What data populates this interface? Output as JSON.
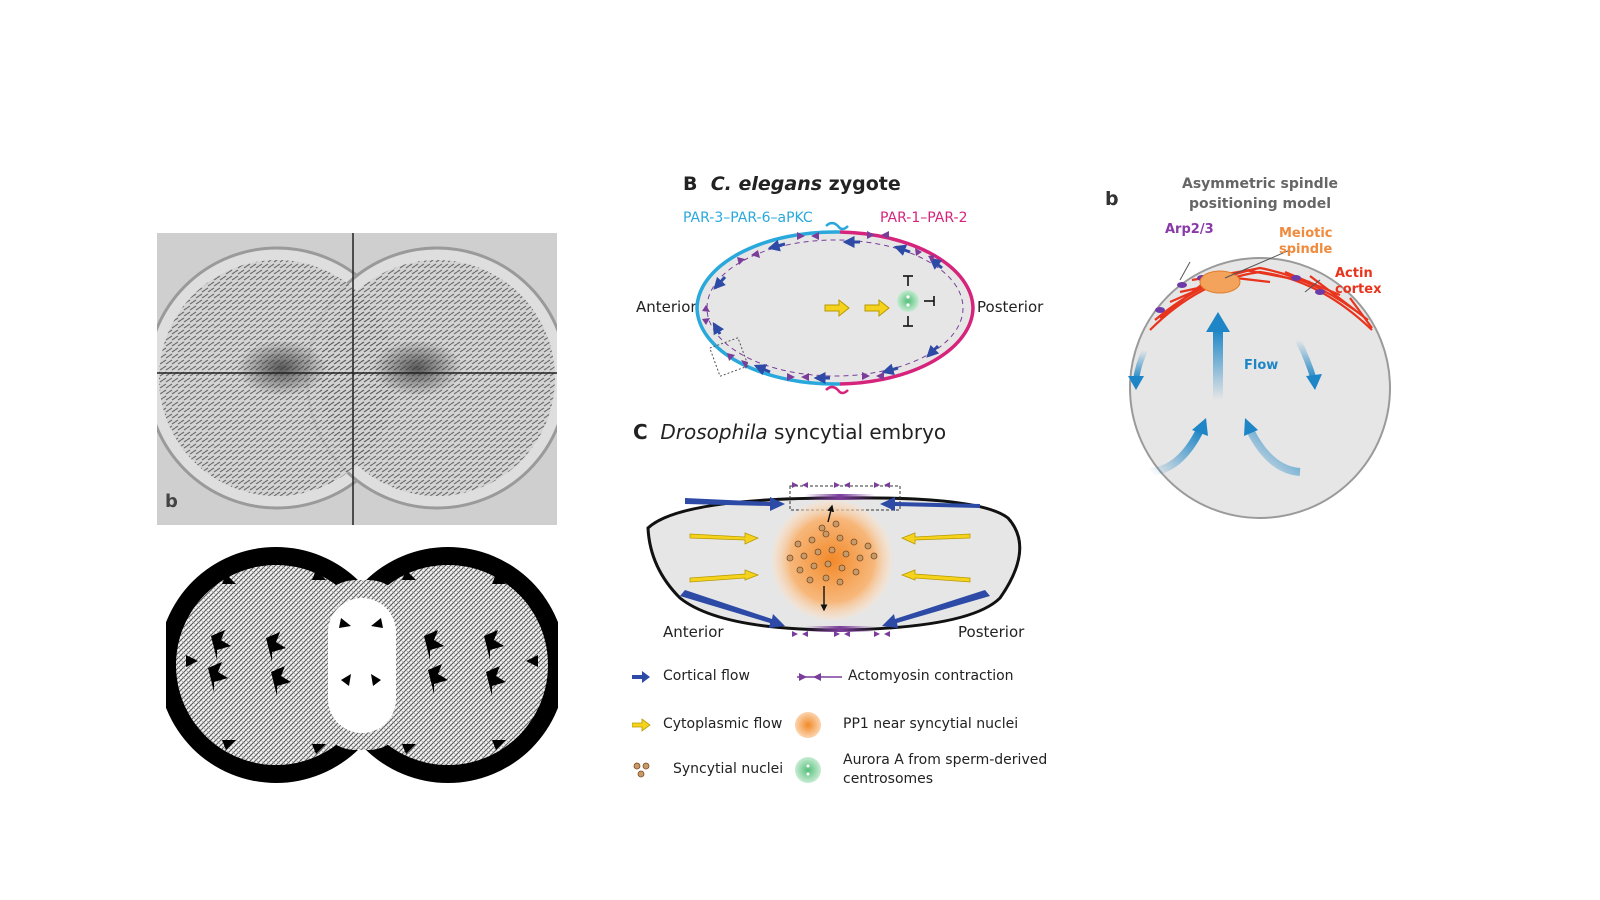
{
  "photo_panel": {
    "letter": "b"
  },
  "panel_B": {
    "letter": "B",
    "title_species": "C. elegans",
    "title_rest": "zygote",
    "anterior_complex": "PAR-3–PAR-6–aPKC",
    "posterior_complex": "PAR-1–PAR-2",
    "left_label": "Anterior",
    "right_label": "Posterior",
    "colors": {
      "anterior": "#29a8dc",
      "posterior": "#d6247c"
    }
  },
  "panel_C": {
    "letter": "C",
    "title_species": "Drosophila",
    "title_rest": "syncytial embryo",
    "left_label": "Anterior",
    "right_label": "Posterior"
  },
  "legend": {
    "cortical_flow": "Cortical flow",
    "actomyosin": "Actomyosin contraction",
    "cytoplasmic_flow": "Cytoplasmic flow",
    "pp1": "PP1 near syncytial nuclei",
    "nuclei": "Syncytial nuclei",
    "aurora_line1": "Aurora A from sperm-derived",
    "aurora_line2": "centrosomes"
  },
  "panel_right": {
    "letter": "b",
    "title_line1": "Asymmetric spindle",
    "title_line2": "positioning model",
    "arp": "Arp2/3",
    "spindle_line1": "Meiotic",
    "spindle_line2": "spindle",
    "actin_line1": "Actin",
    "actin_line2": "cortex",
    "flow": "Flow",
    "colors": {
      "arp": "#8a3aa8",
      "spindle": "#f08a3c",
      "actin": "#e8341c",
      "flow": "#1e86c6"
    }
  }
}
